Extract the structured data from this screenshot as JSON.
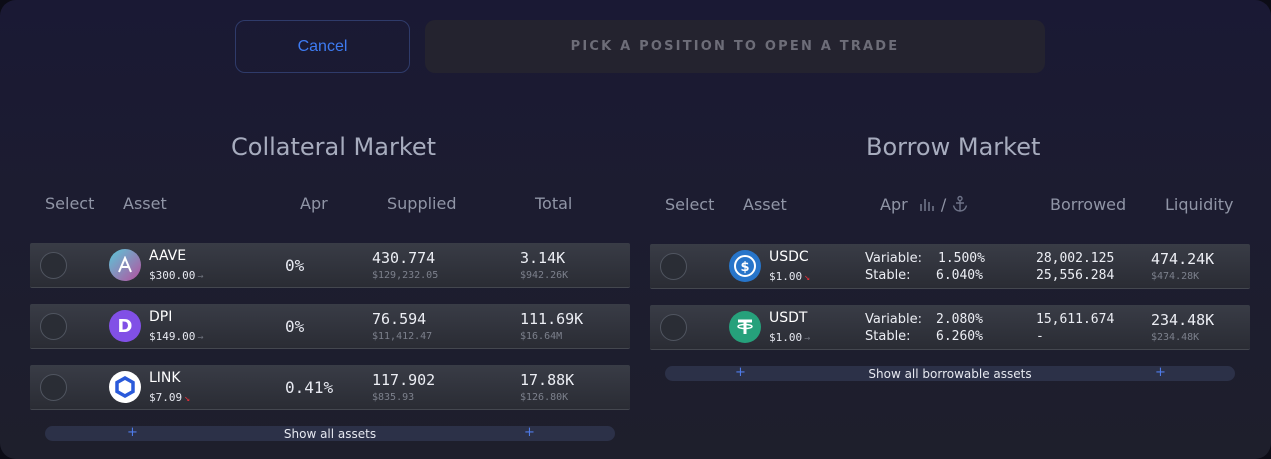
{
  "toolbar": {
    "cancel_label": "Cancel",
    "pick_label": "PICK A POSITION TO OPEN A TRADE"
  },
  "collateral": {
    "title": "Collateral Market",
    "headers": {
      "select": "Select",
      "asset": "Asset",
      "apr": "Apr",
      "supplied": "Supplied",
      "total": "Total"
    },
    "rows": [
      {
        "symbol": "AAVE",
        "price": "$300.00",
        "trend": "flat",
        "apr": "0%",
        "supplied": "430.774",
        "supplied_usd": "$129,232.05",
        "total": "3.14K",
        "total_usd": "$942.26K",
        "icon": "aave-icon",
        "icon_color": "#b6509e"
      },
      {
        "symbol": "DPI",
        "price": "$149.00",
        "trend": "flat",
        "apr": "0%",
        "supplied": "76.594",
        "supplied_usd": "$11,412.47",
        "total": "111.69K",
        "total_usd": "$16.64M",
        "icon": "dpi-icon",
        "icon_color": "#8150e6"
      },
      {
        "symbol": "LINK",
        "price": "$7.09",
        "trend": "down",
        "apr": "0.41%",
        "supplied": "117.902",
        "supplied_usd": "$835.93",
        "total": "17.88K",
        "total_usd": "$126.80K",
        "icon": "chainlink-icon",
        "icon_color": "#2a5ada"
      }
    ],
    "show_all_label": "Show all assets"
  },
  "borrow": {
    "title": "Borrow Market",
    "headers": {
      "select": "Select",
      "asset": "Asset",
      "apr": "Apr",
      "borrowed": "Borrowed",
      "liquidity": "Liquidity"
    },
    "apr_icons": [
      "bar-chart-icon",
      "anchor-icon"
    ],
    "rows": [
      {
        "symbol": "USDC",
        "price": "$1.00",
        "trend": "down",
        "variable_label": "Variable:",
        "variable": "1.500%",
        "stable_label": "Stable:",
        "stable": "6.040%",
        "borrowed_variable": "28,002.125",
        "borrowed_stable": "25,556.284",
        "liquidity": "474.24K",
        "liquidity_usd": "$474.28K",
        "icon": "usdc-icon",
        "icon_color": "#2775ca"
      },
      {
        "symbol": "USDT",
        "price": "$1.00",
        "trend": "flat",
        "variable_label": "Variable:",
        "variable": "2.080%",
        "stable_label": "Stable:",
        "stable": "6.260%",
        "borrowed_variable": "15,611.674",
        "borrowed_stable": "-",
        "liquidity": "234.48K",
        "liquidity_usd": "$234.48K",
        "icon": "tether-icon",
        "icon_color": "#26a17b"
      }
    ],
    "show_all_label": "Show all borrowable assets"
  },
  "glyphs": {
    "trend_flat": "→",
    "trend_down": "↘",
    "plus": "+",
    "slash": "/"
  }
}
